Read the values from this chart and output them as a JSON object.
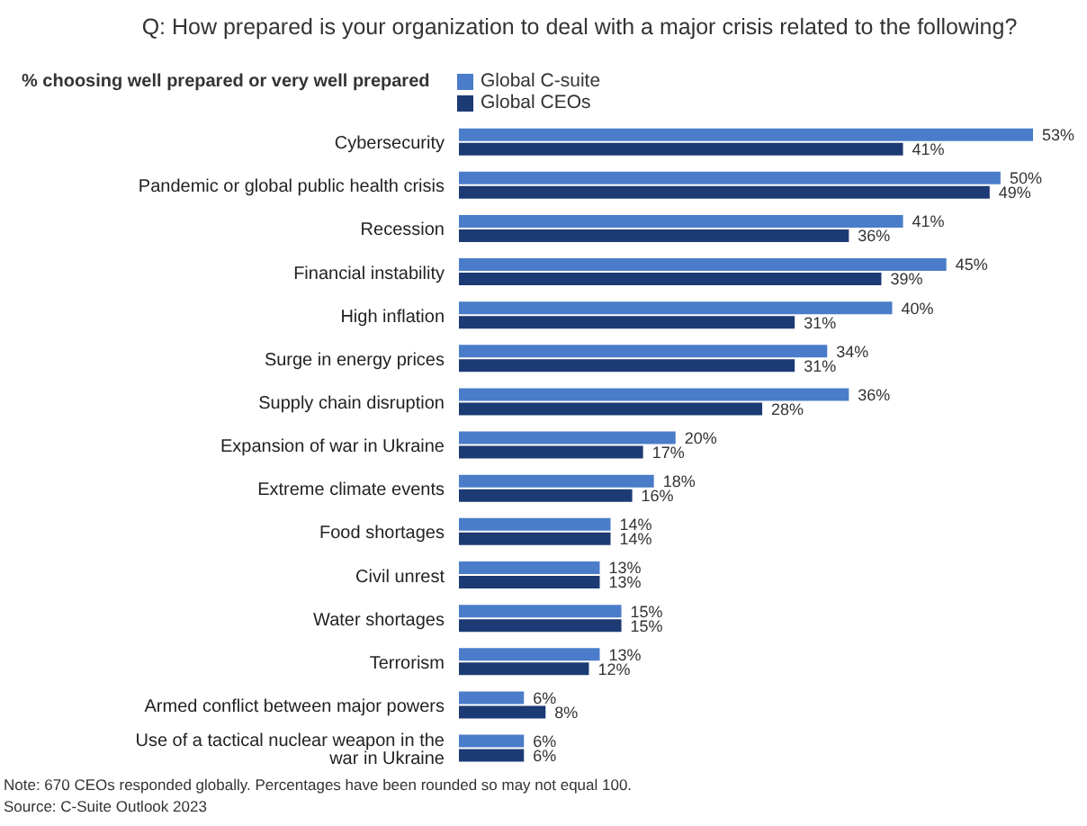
{
  "chart_data": {
    "type": "bar",
    "orientation": "horizontal",
    "title": "Q: How prepared is your organization to deal with a major crisis related to the following?",
    "subtitle": "% choosing well prepared or very well prepared",
    "categories": [
      "Cybersecurity",
      "Pandemic or global public health crisis",
      "Recession",
      "Financial instability",
      "High inflation",
      "Surge in energy prices",
      "Supply chain disruption",
      "Expansion of war in Ukraine",
      "Extreme climate events",
      "Food shortages",
      "Civil unrest",
      "Water shortages",
      "Terrorism",
      "Armed conflict between major powers",
      "Use of a tactical nuclear weapon in the war in Ukraine"
    ],
    "series": [
      {
        "name": "Global C-suite",
        "color": "#4a7cc9",
        "values": [
          53,
          50,
          41,
          45,
          40,
          34,
          36,
          20,
          18,
          14,
          13,
          15,
          13,
          6,
          6
        ],
        "value_labels": [
          "53%",
          "50%",
          "41%",
          "45%",
          "40%",
          "34%",
          "36%",
          "20%",
          "18%",
          "14%",
          "13%",
          "15%",
          "13%",
          "6%",
          "6%"
        ]
      },
      {
        "name": "Global CEOs",
        "color": "#1c3a73",
        "values": [
          41,
          49,
          36,
          39,
          31,
          31,
          28,
          17,
          16,
          14,
          13,
          15,
          12,
          8,
          6
        ],
        "value_labels": [
          "41%",
          "49%",
          "36%",
          "39%",
          "31%",
          "31%",
          "28%",
          "17%",
          "16%",
          "14%",
          "13%",
          "15%",
          "12%",
          "8%",
          "6%"
        ]
      }
    ],
    "legend": "top",
    "grid": false,
    "annotations": [
      "Note: 670 CEOs responded globally. Percentages have been rounded so may not equal 100.",
      "Source: C-Suite Outlook 2023"
    ]
  }
}
